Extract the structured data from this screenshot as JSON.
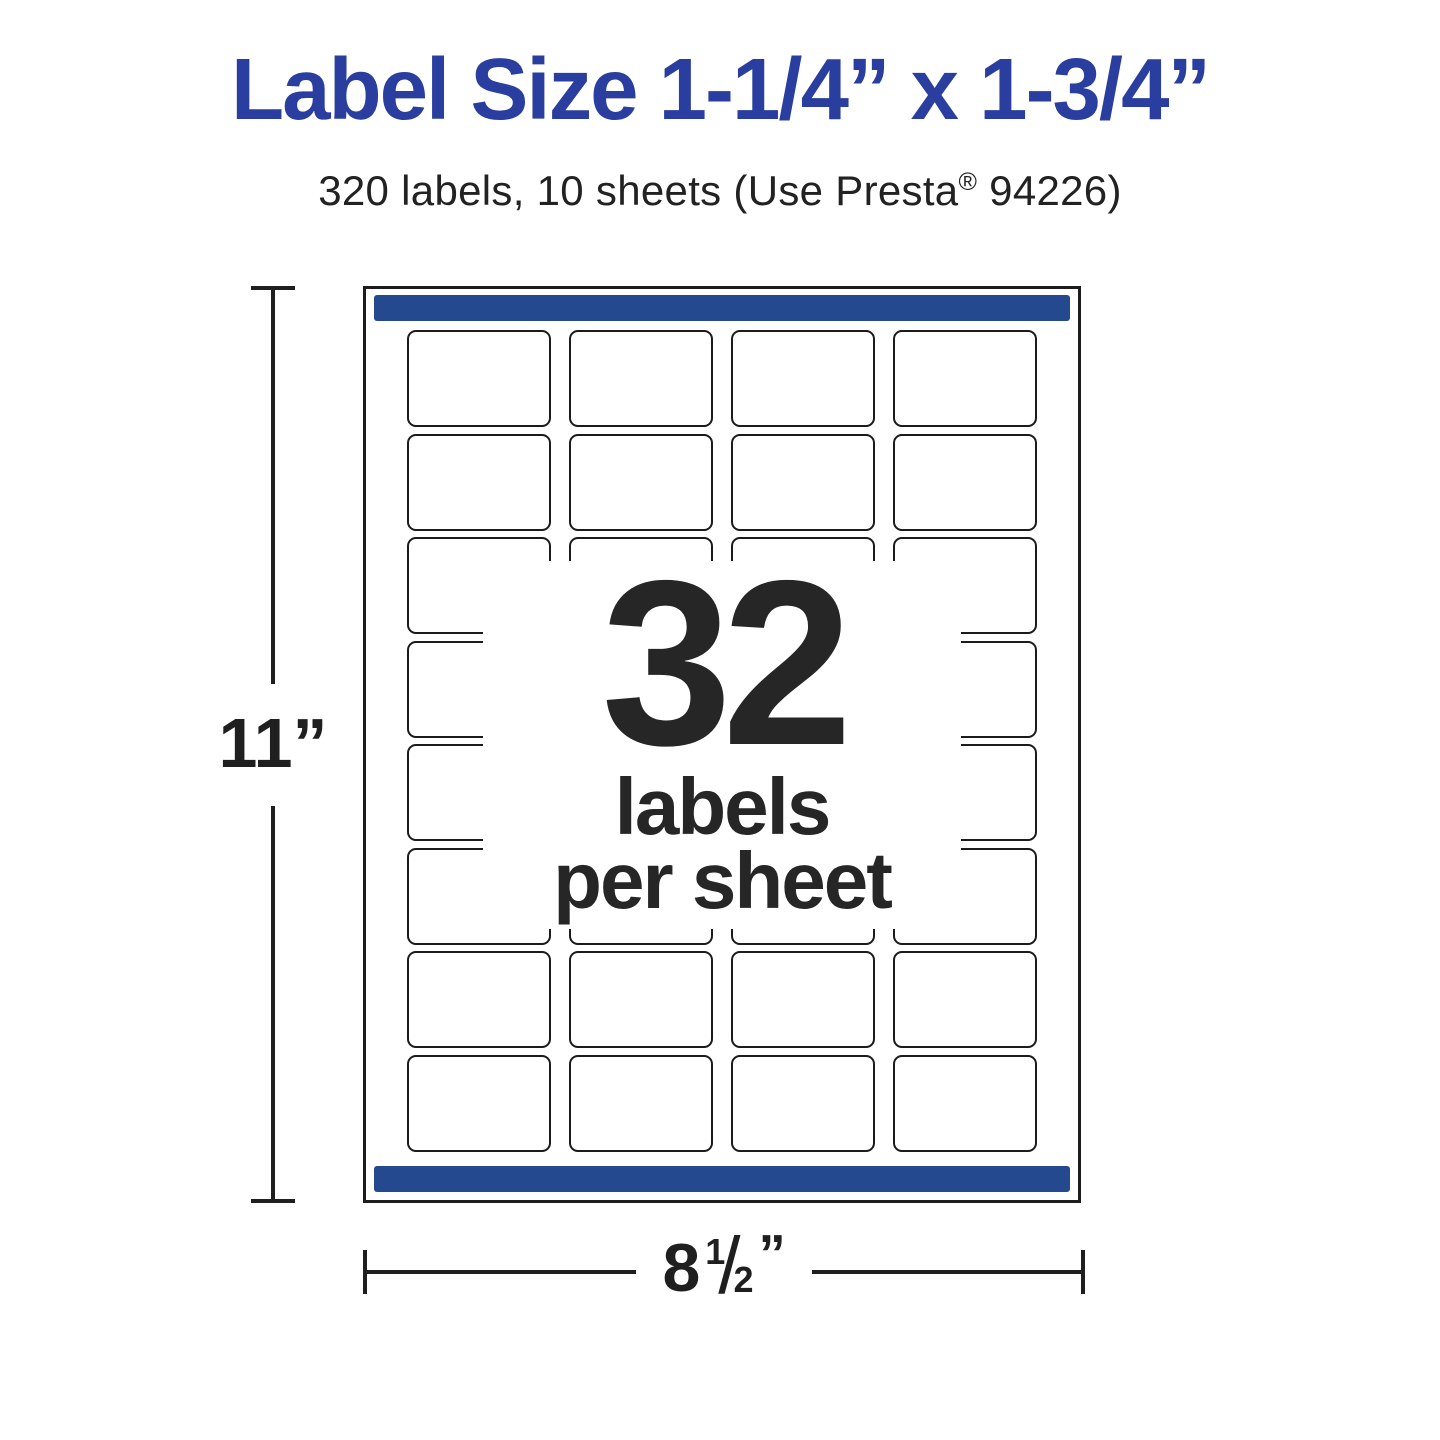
{
  "header": {
    "title": "Label Size 1-1/4” x 1-3/4”",
    "subtitle_pre": "320 labels, 10 sheets (Use Presta",
    "subtitle_reg": "®",
    "subtitle_post": " 94226)"
  },
  "sheet": {
    "grid": {
      "rows": 8,
      "cols": 4
    }
  },
  "overlay": {
    "number": "32",
    "line1": "labels",
    "line2": "per sheet"
  },
  "dimensions": {
    "height_label": "11”",
    "width_whole": "8",
    "width_numerator": "1",
    "width_slash": "/",
    "width_denominator": "2",
    "width_unit": "”"
  },
  "colors": {
    "title_blue": "#2A3E9F",
    "bar_blue": "#24498F",
    "ink": "#1F1F1F",
    "text_dark": "#222222"
  }
}
